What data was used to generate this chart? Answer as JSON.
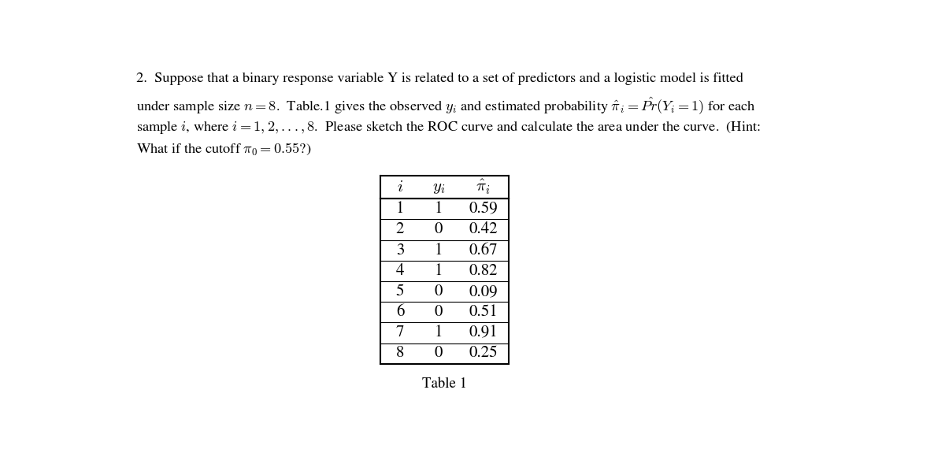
{
  "table_data": [
    [
      1,
      1,
      0.59
    ],
    [
      2,
      0,
      0.42
    ],
    [
      3,
      1,
      0.67
    ],
    [
      4,
      1,
      0.82
    ],
    [
      5,
      0,
      0.09
    ],
    [
      6,
      0,
      0.51
    ],
    [
      7,
      1,
      0.91
    ],
    [
      8,
      0,
      0.25
    ]
  ],
  "table_caption": "Table 1",
  "background_color": "#ffffff",
  "text_color": "#000000",
  "font_size_body": 13.2,
  "font_size_table": 15.0,
  "font_size_caption": 13.5,
  "line1": "2.  Suppose that a binary response variable Y is related to a set of predictors and a logistic model is fitted",
  "line2": "under sample size $n = 8$.  Table.1 gives the observed $y_i$ and estimated probability $\\hat{\\pi}_i = \\hat{Pr}(Y_i = 1)$ for each",
  "line3": "sample $i$, where $i = 1, 2, ..., 8$.  Please sketch the ROC curve and calculate the area under the curve.  (Hint:",
  "line4": "What if the cutoff $\\pi_0 = 0.55$?)"
}
